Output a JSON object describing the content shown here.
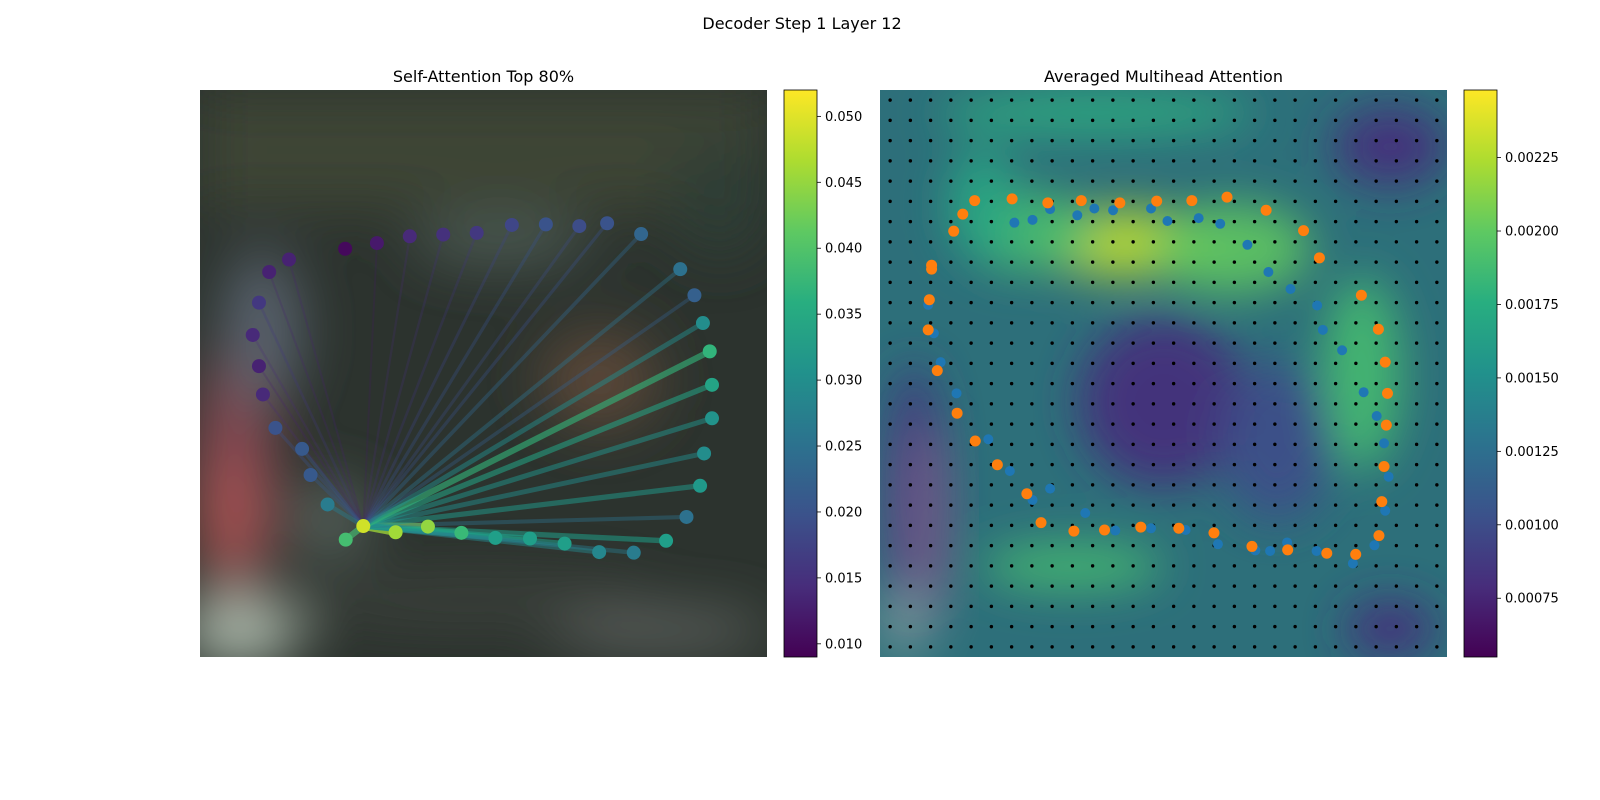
{
  "figure": {
    "title": "Decoder Step 1 Layer 12"
  },
  "chart_data": [
    {
      "type": "scatter",
      "title": "Self-Attention Top 80%",
      "xlabel": "",
      "ylabel": "",
      "grid": false,
      "axes_visible": false,
      "xlim": [
        0,
        1
      ],
      "ylim": [
        0,
        1
      ],
      "colormap": "viridis",
      "colorbar": {
        "range": [
          0.009,
          0.052
        ],
        "ticks": [
          0.01,
          0.015,
          0.02,
          0.025,
          0.03,
          0.035,
          0.04,
          0.045,
          0.05
        ],
        "tick_labels": [
          "0.010",
          "0.015",
          "0.020",
          "0.025",
          "0.030",
          "0.035",
          "0.040",
          "0.045",
          "0.050"
        ]
      },
      "query_point": {
        "x": 0.288,
        "y": 0.231
      },
      "points": [
        {
          "x": 0.288,
          "y": 0.231,
          "w": 0.049
        },
        {
          "x": 0.345,
          "y": 0.22,
          "w": 0.046
        },
        {
          "x": 0.402,
          "y": 0.23,
          "w": 0.045
        },
        {
          "x": 0.461,
          "y": 0.219,
          "w": 0.038
        },
        {
          "x": 0.521,
          "y": 0.21,
          "w": 0.033
        },
        {
          "x": 0.582,
          "y": 0.209,
          "w": 0.033
        },
        {
          "x": 0.643,
          "y": 0.2,
          "w": 0.033
        },
        {
          "x": 0.704,
          "y": 0.185,
          "w": 0.029
        },
        {
          "x": 0.765,
          "y": 0.184,
          "w": 0.027
        },
        {
          "x": 0.822,
          "y": 0.205,
          "w": 0.033
        },
        {
          "x": 0.858,
          "y": 0.247,
          "w": 0.025
        },
        {
          "x": 0.882,
          "y": 0.302,
          "w": 0.032
        },
        {
          "x": 0.889,
          "y": 0.359,
          "w": 0.03
        },
        {
          "x": 0.903,
          "y": 0.421,
          "w": 0.031
        },
        {
          "x": 0.903,
          "y": 0.48,
          "w": 0.034
        },
        {
          "x": 0.899,
          "y": 0.539,
          "w": 0.037
        },
        {
          "x": 0.887,
          "y": 0.589,
          "w": 0.03
        },
        {
          "x": 0.872,
          "y": 0.638,
          "w": 0.022
        },
        {
          "x": 0.847,
          "y": 0.684,
          "w": 0.025
        },
        {
          "x": 0.778,
          "y": 0.746,
          "w": 0.023
        },
        {
          "x": 0.718,
          "y": 0.765,
          "w": 0.02
        },
        {
          "x": 0.669,
          "y": 0.76,
          "w": 0.019
        },
        {
          "x": 0.61,
          "y": 0.763,
          "w": 0.02
        },
        {
          "x": 0.55,
          "y": 0.762,
          "w": 0.018
        },
        {
          "x": 0.488,
          "y": 0.748,
          "w": 0.016
        },
        {
          "x": 0.429,
          "y": 0.745,
          "w": 0.015
        },
        {
          "x": 0.37,
          "y": 0.742,
          "w": 0.014
        },
        {
          "x": 0.312,
          "y": 0.73,
          "w": 0.012
        },
        {
          "x": 0.256,
          "y": 0.72,
          "w": 0.01
        },
        {
          "x": 0.157,
          "y": 0.701,
          "w": 0.013
        },
        {
          "x": 0.122,
          "y": 0.679,
          "w": 0.013
        },
        {
          "x": 0.104,
          "y": 0.625,
          "w": 0.016
        },
        {
          "x": 0.093,
          "y": 0.568,
          "w": 0.014
        },
        {
          "x": 0.104,
          "y": 0.513,
          "w": 0.013
        },
        {
          "x": 0.111,
          "y": 0.463,
          "w": 0.014
        },
        {
          "x": 0.133,
          "y": 0.404,
          "w": 0.02
        },
        {
          "x": 0.18,
          "y": 0.367,
          "w": 0.021
        },
        {
          "x": 0.195,
          "y": 0.321,
          "w": 0.021
        },
        {
          "x": 0.225,
          "y": 0.269,
          "w": 0.027
        },
        {
          "x": 0.257,
          "y": 0.207,
          "w": 0.039
        }
      ]
    },
    {
      "type": "heatmap",
      "title": "Averaged Multihead Attention",
      "xlabel": "",
      "ylabel": "",
      "grid": false,
      "axes_visible": false,
      "xlim": [
        0,
        1
      ],
      "ylim": [
        0,
        1
      ],
      "colormap": "viridis",
      "colorbar": {
        "range": [
          0.00055,
          0.00248
        ],
        "ticks": [
          0.00075,
          0.001,
          0.00125,
          0.0015,
          0.00175,
          0.002,
          0.00225
        ],
        "tick_labels": [
          "0.00075",
          "0.00100",
          "0.00125",
          "0.00150",
          "0.00175",
          "0.00200",
          "0.00225"
        ]
      },
      "grid_points": {
        "rows": 28,
        "cols": 28
      },
      "heat_regions": [
        {
          "x": 0.43,
          "y": 0.73,
          "rx": 0.16,
          "ry": 0.06,
          "v": 0.0023
        },
        {
          "x": 0.26,
          "y": 0.75,
          "rx": 0.12,
          "ry": 0.07,
          "v": 0.0019
        },
        {
          "x": 0.62,
          "y": 0.72,
          "rx": 0.14,
          "ry": 0.08,
          "v": 0.002
        },
        {
          "x": 0.85,
          "y": 0.5,
          "rx": 0.07,
          "ry": 0.17,
          "v": 0.0019
        },
        {
          "x": 0.34,
          "y": 0.16,
          "rx": 0.16,
          "ry": 0.04,
          "v": 0.0019
        },
        {
          "x": 0.38,
          "y": 0.96,
          "rx": 0.28,
          "ry": 0.04,
          "v": 0.00175
        },
        {
          "x": 0.18,
          "y": 0.8,
          "rx": 0.06,
          "ry": 0.1,
          "v": 0.0017
        },
        {
          "x": 0.5,
          "y": 0.45,
          "rx": 0.15,
          "ry": 0.15,
          "v": 0.0008
        },
        {
          "x": 0.9,
          "y": 0.9,
          "rx": 0.1,
          "ry": 0.07,
          "v": 0.0008
        },
        {
          "x": 0.9,
          "y": 0.05,
          "rx": 0.08,
          "ry": 0.05,
          "v": 0.0008
        },
        {
          "x": 0.06,
          "y": 0.3,
          "rx": 0.05,
          "ry": 0.22,
          "v": 0.00085
        },
        {
          "x": 0.7,
          "y": 0.38,
          "rx": 0.1,
          "ry": 0.14,
          "v": 0.001
        }
      ],
      "series": [
        {
          "name": "",
          "color": "#1f77b4",
          "points": [
            {
              "x": 0.237,
              "y": 0.766
            },
            {
              "x": 0.269,
              "y": 0.771
            },
            {
              "x": 0.3,
              "y": 0.79
            },
            {
              "x": 0.348,
              "y": 0.779
            },
            {
              "x": 0.378,
              "y": 0.791
            },
            {
              "x": 0.411,
              "y": 0.788
            },
            {
              "x": 0.478,
              "y": 0.791
            },
            {
              "x": 0.507,
              "y": 0.769
            },
            {
              "x": 0.562,
              "y": 0.774
            },
            {
              "x": 0.6,
              "y": 0.764
            },
            {
              "x": 0.648,
              "y": 0.727
            },
            {
              "x": 0.685,
              "y": 0.679
            },
            {
              "x": 0.724,
              "y": 0.649
            },
            {
              "x": 0.771,
              "y": 0.62
            },
            {
              "x": 0.781,
              "y": 0.577
            },
            {
              "x": 0.815,
              "y": 0.541
            },
            {
              "x": 0.853,
              "y": 0.467
            },
            {
              "x": 0.876,
              "y": 0.425
            },
            {
              "x": 0.889,
              "y": 0.377
            },
            {
              "x": 0.897,
              "y": 0.318
            },
            {
              "x": 0.891,
              "y": 0.258
            },
            {
              "x": 0.872,
              "y": 0.197
            },
            {
              "x": 0.834,
              "y": 0.165
            },
            {
              "x": 0.77,
              "y": 0.187
            },
            {
              "x": 0.718,
              "y": 0.202
            },
            {
              "x": 0.688,
              "y": 0.187
            },
            {
              "x": 0.662,
              "y": 0.188
            },
            {
              "x": 0.596,
              "y": 0.199
            },
            {
              "x": 0.539,
              "y": 0.224
            },
            {
              "x": 0.478,
              "y": 0.227
            },
            {
              "x": 0.415,
              "y": 0.223
            },
            {
              "x": 0.362,
              "y": 0.254
            },
            {
              "x": 0.3,
              "y": 0.297
            },
            {
              "x": 0.269,
              "y": 0.277
            },
            {
              "x": 0.229,
              "y": 0.328
            },
            {
              "x": 0.191,
              "y": 0.384
            },
            {
              "x": 0.135,
              "y": 0.465
            },
            {
              "x": 0.107,
              "y": 0.52
            },
            {
              "x": 0.095,
              "y": 0.571
            },
            {
              "x": 0.085,
              "y": 0.621
            }
          ]
        },
        {
          "name": "",
          "color": "#ff7f0e",
          "points": [
            {
              "x": 0.091,
              "y": 0.684
            },
            {
              "x": 0.087,
              "y": 0.63
            },
            {
              "x": 0.085,
              "y": 0.577
            },
            {
              "x": 0.101,
              "y": 0.505
            },
            {
              "x": 0.136,
              "y": 0.43
            },
            {
              "x": 0.168,
              "y": 0.381
            },
            {
              "x": 0.207,
              "y": 0.339
            },
            {
              "x": 0.259,
              "y": 0.288
            },
            {
              "x": 0.284,
              "y": 0.237
            },
            {
              "x": 0.342,
              "y": 0.222
            },
            {
              "x": 0.396,
              "y": 0.224
            },
            {
              "x": 0.46,
              "y": 0.229
            },
            {
              "x": 0.527,
              "y": 0.227
            },
            {
              "x": 0.589,
              "y": 0.219
            },
            {
              "x": 0.656,
              "y": 0.195
            },
            {
              "x": 0.719,
              "y": 0.189
            },
            {
              "x": 0.788,
              "y": 0.183
            },
            {
              "x": 0.839,
              "y": 0.181
            },
            {
              "x": 0.88,
              "y": 0.214
            },
            {
              "x": 0.885,
              "y": 0.274
            },
            {
              "x": 0.889,
              "y": 0.336
            },
            {
              "x": 0.893,
              "y": 0.409
            },
            {
              "x": 0.895,
              "y": 0.465
            },
            {
              "x": 0.891,
              "y": 0.52
            },
            {
              "x": 0.879,
              "y": 0.578
            },
            {
              "x": 0.849,
              "y": 0.638
            },
            {
              "x": 0.775,
              "y": 0.704
            },
            {
              "x": 0.747,
              "y": 0.752
            },
            {
              "x": 0.681,
              "y": 0.788
            },
            {
              "x": 0.612,
              "y": 0.811
            },
            {
              "x": 0.55,
              "y": 0.805
            },
            {
              "x": 0.488,
              "y": 0.804
            },
            {
              "x": 0.423,
              "y": 0.801
            },
            {
              "x": 0.355,
              "y": 0.805
            },
            {
              "x": 0.296,
              "y": 0.801
            },
            {
              "x": 0.233,
              "y": 0.808
            },
            {
              "x": 0.167,
              "y": 0.805
            },
            {
              "x": 0.146,
              "y": 0.781
            },
            {
              "x": 0.13,
              "y": 0.751
            },
            {
              "x": 0.091,
              "y": 0.691
            }
          ]
        }
      ]
    }
  ]
}
